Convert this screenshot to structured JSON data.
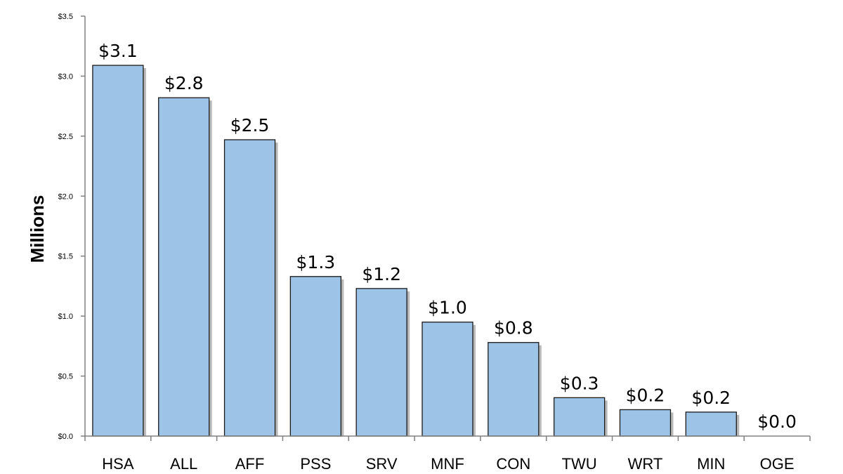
{
  "chart_data": {
    "type": "bar",
    "title": "",
    "xlabel": "",
    "ylabel": "Millions",
    "ylim": [
      0,
      3.5
    ],
    "grid": false,
    "yticks": [
      "$0.0",
      "$0.5",
      "$1.0",
      "$1.5",
      "$2.0",
      "$2.5",
      "$3.0",
      "$3.5"
    ],
    "categories": [
      "HSA",
      "ALL",
      "AFF",
      "PSS",
      "SRV",
      "MNF",
      "CON",
      "TWU",
      "WRT",
      "MIN",
      "OGE"
    ],
    "values": [
      3.09,
      2.82,
      2.47,
      1.33,
      1.23,
      0.95,
      0.78,
      0.32,
      0.22,
      0.2,
      0.0
    ],
    "data_labels": [
      "$3.1",
      "$2.8",
      "$2.5",
      "$1.3",
      "$1.2",
      "$1.0",
      "$0.8",
      "$0.3",
      "$0.2",
      "$0.2",
      "$0.0"
    ],
    "colors": {
      "bar": "#9dc3e6",
      "bar_edge": "#1a1a1a",
      "axis": "#808080"
    }
  }
}
